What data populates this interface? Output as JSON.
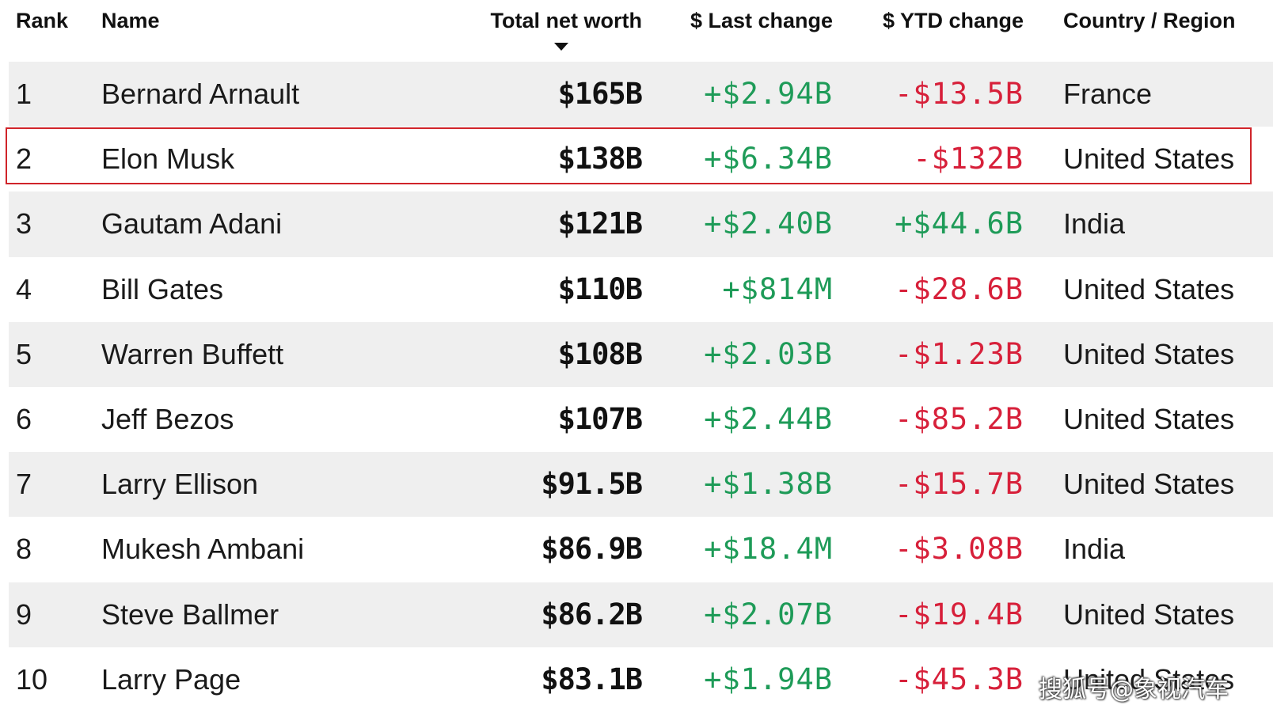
{
  "header": {
    "rank": "Rank",
    "name": "Name",
    "total_net_worth": "Total net worth",
    "last_change": "$ Last change",
    "ytd_change": "$ YTD change",
    "country_region": "Country / Region",
    "sort_indicator": "sort-down-icon"
  },
  "rows": [
    {
      "rank": "1",
      "name": "Bernard Arnault",
      "worth": "$165B",
      "last": "+$2.94B",
      "ytd": "-$13.5B",
      "country": "France"
    },
    {
      "rank": "2",
      "name": "Elon Musk",
      "worth": "$138B",
      "last": "+$6.34B",
      "ytd": "-$132B",
      "country": "United States"
    },
    {
      "rank": "3",
      "name": "Gautam Adani",
      "worth": "$121B",
      "last": "+$2.40B",
      "ytd": "+$44.6B",
      "country": "India"
    },
    {
      "rank": "4",
      "name": "Bill Gates",
      "worth": "$110B",
      "last": "+$814M",
      "ytd": "-$28.6B",
      "country": "United States"
    },
    {
      "rank": "5",
      "name": "Warren Buffett",
      "worth": "$108B",
      "last": "+$2.03B",
      "ytd": "-$1.23B",
      "country": "United States"
    },
    {
      "rank": "6",
      "name": "Jeff Bezos",
      "worth": "$107B",
      "last": "+$2.44B",
      "ytd": "-$85.2B",
      "country": "United States"
    },
    {
      "rank": "7",
      "name": "Larry Ellison",
      "worth": "$91.5B",
      "last": "+$1.38B",
      "ytd": "-$15.7B",
      "country": "United States"
    },
    {
      "rank": "8",
      "name": "Mukesh Ambani",
      "worth": "$86.9B",
      "last": "+$18.4M",
      "ytd": "-$3.08B",
      "country": "India"
    },
    {
      "rank": "9",
      "name": "Steve Ballmer",
      "worth": "$86.2B",
      "last": "+$2.07B",
      "ytd": "-$19.4B",
      "country": "United States"
    },
    {
      "rank": "10",
      "name": "Larry Page",
      "worth": "$83.1B",
      "last": "+$1.94B",
      "ytd": "-$45.3B",
      "country": "United States"
    }
  ],
  "highlighted_rank": "2",
  "colors": {
    "positive": "#1e9b58",
    "negative": "#d7203a",
    "highlight_border": "#d0242a",
    "row_alt": "#efefef"
  },
  "watermark": "搜狐号@象视汽车"
}
